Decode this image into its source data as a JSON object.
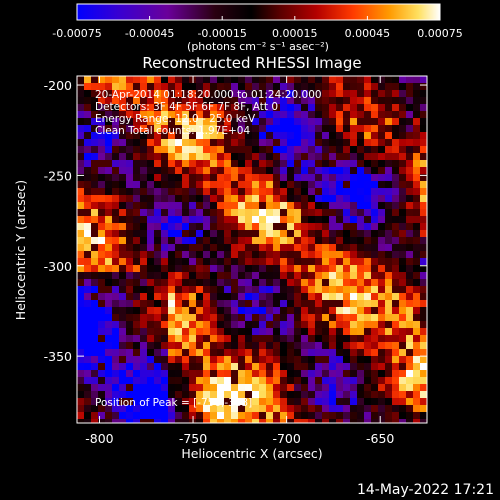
{
  "colorbar": {
    "tick_labels": [
      "-0.00075",
      "-0.00045",
      "-0.00015",
      "0.00015",
      "0.00045",
      "0.00075"
    ],
    "range": [
      -0.00075,
      0.00075
    ],
    "unit_label": "(photons cm⁻² s⁻¹ asec⁻²)",
    "colormap": [
      "#0000ff",
      "#3a00d0",
      "#6a009a",
      "#2a0010",
      "#000000",
      "#5a0000",
      "#b40000",
      "#ff3a00",
      "#ff9a00",
      "#ffe060",
      "#ffffff"
    ]
  },
  "title": "Reconstructed RHESSI Image",
  "info_lines": [
    "20-Apr-2014 01:18:20.000 to 01:24:20.000",
    "Detectors: 3F 4F 5F 6F 7F 8F, Att 0",
    "Energy Range: 12.0 - 25.0 keV",
    "Clean     Total counts: 1.97E+04"
  ],
  "peak_text": "Position of Peak = [-756,-383]",
  "footer_date": "14-May-2022 17:21",
  "chart_data": {
    "type": "heatmap",
    "title": "Reconstructed RHESSI Image",
    "xlabel": "Heliocentric X (arcsec)",
    "ylabel": "Heliocentric Y (arcsec)",
    "xlim": [
      -812,
      -625
    ],
    "ylim": [
      -387,
      -195
    ],
    "x_ticks": [
      -800,
      -750,
      -700,
      -650
    ],
    "y_ticks": [
      -200,
      -250,
      -300,
      -350
    ],
    "peak_position": [
      -756,
      -383
    ],
    "value_range": [
      -0.00075,
      0.00075
    ],
    "unit": "photons cm^-2 s^-1 asec^-2"
  }
}
